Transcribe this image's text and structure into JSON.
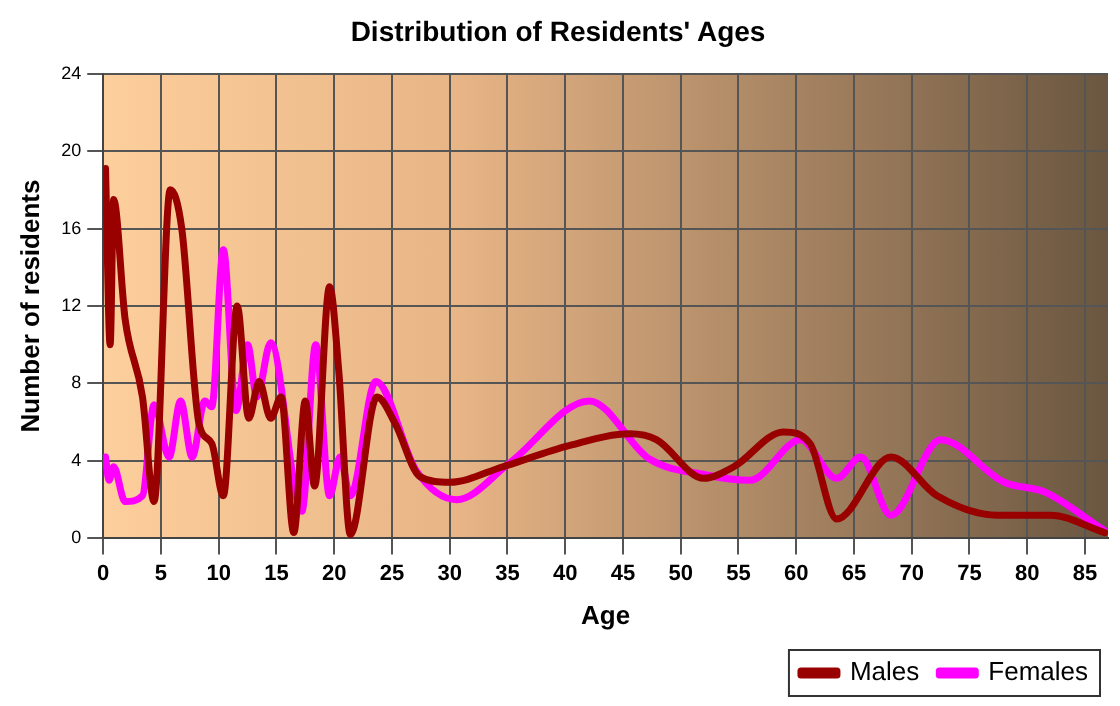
{
  "chart_data": {
    "type": "line",
    "title": "Distribution of Residents' Ages",
    "xlabel": "Age",
    "ylabel": "Number of residents",
    "xlim": [
      0,
      87
    ],
    "xticks": [
      0,
      5,
      10,
      15,
      20,
      25,
      30,
      35,
      40,
      45,
      50,
      55,
      60,
      65,
      70,
      75,
      80,
      85
    ],
    "ylim": [
      0,
      24
    ],
    "yticks": [
      0,
      4,
      8,
      12,
      16,
      20,
      24
    ],
    "grid": true,
    "legend": "bottom right",
    "marker": "none",
    "line_style": "solid",
    "series": [
      {
        "name": "Males",
        "color": "#990000",
        "x": [
          0.2,
          0.6,
          0.9,
          1.9,
          3.4,
          4.4,
          5.8,
          6.8,
          8.3,
          9.4,
          10.4,
          11.6,
          12.6,
          13.5,
          14.5,
          15.4,
          16.5,
          17.5,
          18.3,
          19.6,
          20.4,
          21.4,
          23.7,
          25.3,
          27.4,
          30,
          34.6,
          40.4,
          45.6,
          47.9,
          52,
          54.6,
          58.9,
          61.2,
          63.5,
          68.2,
          72.2,
          77.4,
          82,
          86.7
        ],
        "values": [
          19.1,
          10,
          17.5,
          11.3,
          7.3,
          1.9,
          18,
          16,
          5.9,
          4.9,
          2.2,
          12,
          6.2,
          8.1,
          6.2,
          7.3,
          0.3,
          7.1,
          2.7,
          13,
          8.6,
          0.2,
          7.3,
          5.9,
          3.2,
          2.9,
          3.7,
          4.8,
          5.4,
          5.1,
          3.1,
          3.7,
          5.5,
          4.9,
          1,
          4.2,
          2.2,
          1.2,
          1.2,
          0.3
        ]
      },
      {
        "name": "Females",
        "color": "#ff00ff",
        "x": [
          0.2,
          0.5,
          0.9,
          1.9,
          3.4,
          4.4,
          5.7,
          6.7,
          7.7,
          8.8,
          9.4,
          10.4,
          11.5,
          12.5,
          13.3,
          14.5,
          17.2,
          18.4,
          19.6,
          20.5,
          21.4,
          23.6,
          27.1,
          30.6,
          35.2,
          42.1,
          47.3,
          52,
          56,
          60.4,
          63.5,
          65.6,
          68.2,
          72.5,
          78,
          81.5,
          86.7
        ],
        "values": [
          4.2,
          3,
          3.7,
          1.9,
          2.2,
          6.9,
          4.2,
          7.1,
          4.2,
          7.1,
          6.8,
          14.9,
          6.6,
          10,
          7.3,
          10.1,
          1.4,
          10,
          2.2,
          4.2,
          2.2,
          8.1,
          3.5,
          2,
          3.9,
          7.1,
          4.1,
          3.3,
          3,
          5.1,
          3.1,
          4.2,
          1.2,
          5.1,
          2.9,
          2.4,
          0.4
        ]
      }
    ]
  }
}
